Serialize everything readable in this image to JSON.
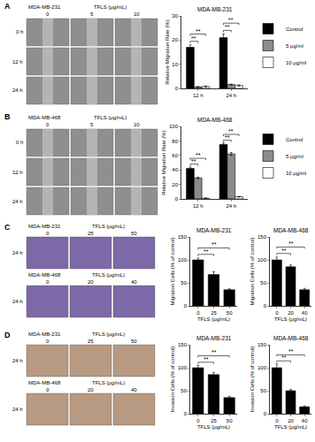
{
  "figure": {
    "panels": [
      {
        "label": "A",
        "grids": [
          {
            "cell_line": "MDA-MB-231",
            "treatment": "TFLS (μg/mL)",
            "columns": [
              "0",
              "5",
              "10"
            ],
            "rows": [
              "0 h",
              "12 h",
              "24 h"
            ]
          }
        ]
      },
      {
        "label": "B",
        "grids": [
          {
            "cell_line": "MDA-MB-468",
            "treatment": "TFLS (μg/mL)",
            "columns": [
              "0",
              "5",
              "10"
            ],
            "rows": [
              "0 h",
              "12 h",
              "24 h"
            ]
          }
        ]
      },
      {
        "label": "C",
        "grids": [
          {
            "cell_line": "MDA-MB-231",
            "treatment": "TFLS (μg/mL)",
            "columns": [
              "0",
              "25",
              "50"
            ],
            "rows": [
              "24 h"
            ]
          },
          {
            "cell_line": "MDA-MB-468",
            "treatment": "TFLS (μg/mL)",
            "columns": [
              "0",
              "20",
              "40"
            ],
            "rows": [
              "24 h"
            ]
          }
        ]
      },
      {
        "label": "D",
        "grids": [
          {
            "cell_line": "MDA-MB-231",
            "treatment": "TFLS (μg/mL)",
            "columns": [
              "0",
              "25",
              "50"
            ],
            "rows": [
              "24 h"
            ]
          },
          {
            "cell_line": "MDA-MB-468",
            "treatment": "TFLS (μg/mL)",
            "columns": [
              "0",
              "20",
              "40"
            ],
            "rows": [
              "24 h"
            ]
          }
        ]
      }
    ]
  },
  "chart_data": [
    {
      "type": "bar",
      "title": "MDA-MB-231",
      "y_label": "Relative Migration Rate (%)",
      "categories": [
        "12 h",
        "24 h"
      ],
      "series": [
        {
          "name": "Control",
          "color": "#000000",
          "values": [
            17,
            21
          ],
          "errors": [
            1,
            1.5
          ]
        },
        {
          "name": "5 μg/ml",
          "color": "#8c8c8c",
          "values": [
            0.6,
            1.6
          ],
          "errors": [
            0.2,
            0.2
          ]
        },
        {
          "name": "10 μg/ml",
          "color": "#ffffff",
          "values": [
            0.8,
            1.2
          ],
          "errors": [
            0.2,
            0.3
          ]
        }
      ],
      "ylim": [
        0,
        30
      ],
      "yticks": [
        0,
        10,
        20,
        30
      ],
      "legend": "right",
      "significance": [
        {
          "text": "**",
          "category": 0,
          "from": 0,
          "to": 1,
          "y": 19.5
        },
        {
          "text": "**",
          "category": 0,
          "from": 0,
          "to": 2,
          "y": 22.5
        },
        {
          "text": "**",
          "category": 1,
          "from": 0,
          "to": 1,
          "y": 24
        },
        {
          "text": "**",
          "category": 1,
          "from": 0,
          "to": 2,
          "y": 27
        }
      ]
    },
    {
      "type": "bar",
      "title": "MDA-MB-468",
      "y_label": "Relative Migration Rate (%)",
      "categories": [
        "12 h",
        "24 h"
      ],
      "series": [
        {
          "name": "Control",
          "color": "#000000",
          "values": [
            42,
            75
          ],
          "errors": [
            2,
            2
          ]
        },
        {
          "name": "5 μg/ml",
          "color": "#8c8c8c",
          "values": [
            29,
            62
          ],
          "errors": [
            1,
            2
          ]
        },
        {
          "name": "10 μg/ml",
          "color": "#ffffff",
          "values": [
            1,
            3
          ],
          "errors": [
            0.3,
            0.5
          ]
        }
      ],
      "ylim": [
        0,
        100
      ],
      "yticks": [
        0,
        20,
        40,
        60,
        80,
        100
      ],
      "legend": "right",
      "significance": [
        {
          "text": "**",
          "category": 0,
          "from": 0,
          "to": 1,
          "y": 48
        },
        {
          "text": "**",
          "category": 0,
          "from": 0,
          "to": 2,
          "y": 56
        },
        {
          "text": "**",
          "category": 1,
          "from": 0,
          "to": 1,
          "y": 81
        },
        {
          "text": "**",
          "category": 1,
          "from": 0,
          "to": 2,
          "y": 89
        }
      ]
    },
    {
      "type": "bar",
      "title": "MDA-MB-231",
      "y_label": "Migration Cells (% of control)",
      "x_label": "TFLS (μg/mL)",
      "categories": [
        "0",
        "25",
        "50"
      ],
      "values": [
        100,
        68,
        35
      ],
      "errors": [
        4,
        6,
        2
      ],
      "color": "#000000",
      "ylim": [
        0,
        150
      ],
      "yticks": [
        0,
        50,
        100,
        150
      ],
      "significance": [
        {
          "text": "**",
          "from": 0,
          "to": 1,
          "y": 112
        },
        {
          "text": "**",
          "from": 0,
          "to": 2,
          "y": 126
        }
      ]
    },
    {
      "type": "bar",
      "title": "MDA-MB-468",
      "y_label": "Migration Cells (% of control)",
      "x_label": "TFLS (μg/mL)",
      "categories": [
        "0",
        "20",
        "40"
      ],
      "values": [
        100,
        85,
        35
      ],
      "errors": [
        6,
        4,
        3
      ],
      "color": "#000000",
      "ylim": [
        0,
        150
      ],
      "yticks": [
        0,
        50,
        100,
        150
      ],
      "significance": [
        {
          "text": "**",
          "from": 0,
          "to": 1,
          "y": 114
        },
        {
          "text": "**",
          "from": 0,
          "to": 2,
          "y": 128
        }
      ]
    },
    {
      "type": "bar",
      "title": "MDA-MB-231",
      "y_label": "Invasion Cells (% of control)",
      "x_label": "TFLS (μg/mL)",
      "categories": [
        "0",
        "25",
        "50"
      ],
      "values": [
        100,
        85,
        35
      ],
      "errors": [
        5,
        5,
        3
      ],
      "color": "#000000",
      "ylim": [
        0,
        150
      ],
      "yticks": [
        0,
        50,
        100,
        150
      ],
      "significance": [
        {
          "text": "**",
          "from": 0,
          "to": 1,
          "y": 112
        },
        {
          "text": "**",
          "from": 0,
          "to": 2,
          "y": 126
        }
      ]
    },
    {
      "type": "bar",
      "title": "MDA-MB-468",
      "y_label": "Invasion Cells (% of control)",
      "x_label": "TFLS (μg/mL)",
      "categories": [
        "0",
        "20",
        "40"
      ],
      "values": [
        100,
        50,
        15
      ],
      "errors": [
        8,
        3,
        2
      ],
      "color": "#000000",
      "ylim": [
        0,
        150
      ],
      "yticks": [
        0,
        50,
        100,
        150
      ],
      "significance": [
        {
          "text": "**",
          "from": 0,
          "to": 1,
          "y": 115
        },
        {
          "text": "**",
          "from": 0,
          "to": 2,
          "y": 128
        }
      ]
    }
  ]
}
